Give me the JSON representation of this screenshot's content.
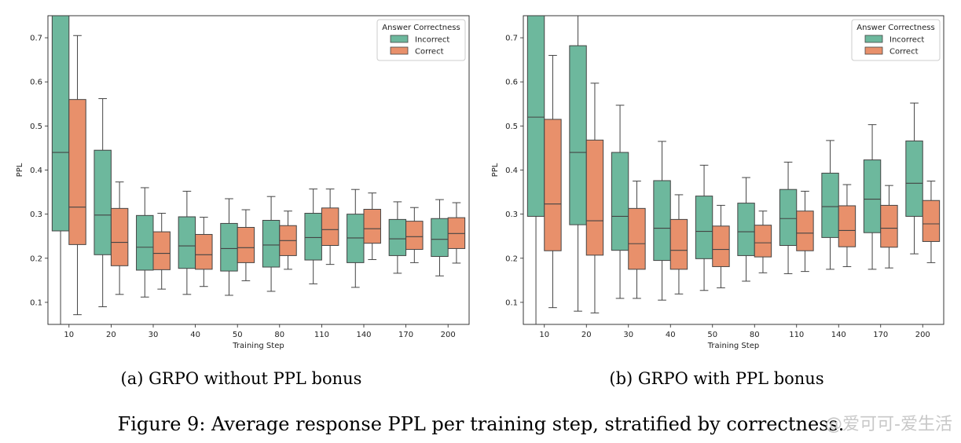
{
  "figure_caption": "Figure 9: Average response PPL per training step, stratified by correctness.",
  "watermark": "@爱可可-爱生活",
  "colors": {
    "incorrect": "#6db89d",
    "correct": "#e8906b",
    "line": "#444444"
  },
  "chart_data": [
    {
      "type": "box",
      "subcaption": "(a) GRPO without PPL bonus",
      "xlabel": "Training Step",
      "ylabel": "PPL",
      "ylim": [
        0.05,
        0.75
      ],
      "yticks": [
        "0.1",
        "0.2",
        "0.3",
        "0.4",
        "0.5",
        "0.6",
        "0.7"
      ],
      "categories": [
        "10",
        "20",
        "30",
        "40",
        "50",
        "80",
        "110",
        "140",
        "170",
        "200"
      ],
      "legend": {
        "title": "Answer Correctness",
        "position": "top-right"
      },
      "series": [
        {
          "name": "Incorrect",
          "boxes": [
            {
              "whislo": 0.05,
              "q1": 0.262,
              "med": 0.44,
              "q3": 0.75,
              "whishi": 0.75
            },
            {
              "whislo": 0.09,
              "q1": 0.208,
              "med": 0.298,
              "q3": 0.445,
              "whishi": 0.562
            },
            {
              "whislo": 0.112,
              "q1": 0.173,
              "med": 0.225,
              "q3": 0.297,
              "whishi": 0.36
            },
            {
              "whislo": 0.118,
              "q1": 0.177,
              "med": 0.228,
              "q3": 0.294,
              "whishi": 0.352
            },
            {
              "whislo": 0.116,
              "q1": 0.171,
              "med": 0.222,
              "q3": 0.279,
              "whishi": 0.335
            },
            {
              "whislo": 0.125,
              "q1": 0.18,
              "med": 0.23,
              "q3": 0.286,
              "whishi": 0.34
            },
            {
              "whislo": 0.142,
              "q1": 0.196,
              "med": 0.247,
              "q3": 0.302,
              "whishi": 0.357
            },
            {
              "whislo": 0.134,
              "q1": 0.19,
              "med": 0.246,
              "q3": 0.3,
              "whishi": 0.356
            },
            {
              "whislo": 0.166,
              "q1": 0.206,
              "med": 0.244,
              "q3": 0.288,
              "whishi": 0.328
            },
            {
              "whislo": 0.16,
              "q1": 0.204,
              "med": 0.243,
              "q3": 0.29,
              "whishi": 0.333
            }
          ]
        },
        {
          "name": "Correct",
          "boxes": [
            {
              "whislo": 0.072,
              "q1": 0.231,
              "med": 0.316,
              "q3": 0.56,
              "whishi": 0.705
            },
            {
              "whislo": 0.118,
              "q1": 0.183,
              "med": 0.236,
              "q3": 0.313,
              "whishi": 0.373
            },
            {
              "whislo": 0.13,
              "q1": 0.174,
              "med": 0.211,
              "q3": 0.26,
              "whishi": 0.302
            },
            {
              "whislo": 0.136,
              "q1": 0.175,
              "med": 0.208,
              "q3": 0.254,
              "whishi": 0.293
            },
            {
              "whislo": 0.149,
              "q1": 0.19,
              "med": 0.224,
              "q3": 0.27,
              "whishi": 0.31
            },
            {
              "whislo": 0.175,
              "q1": 0.206,
              "med": 0.24,
              "q3": 0.274,
              "whishi": 0.307
            },
            {
              "whislo": 0.186,
              "q1": 0.229,
              "med": 0.265,
              "q3": 0.314,
              "whishi": 0.357
            },
            {
              "whislo": 0.197,
              "q1": 0.234,
              "med": 0.267,
              "q3": 0.311,
              "whishi": 0.348
            },
            {
              "whislo": 0.19,
              "q1": 0.22,
              "med": 0.249,
              "q3": 0.284,
              "whishi": 0.315
            },
            {
              "whislo": 0.189,
              "q1": 0.222,
              "med": 0.256,
              "q3": 0.292,
              "whishi": 0.326
            }
          ]
        }
      ]
    },
    {
      "type": "box",
      "subcaption": "(b) GRPO with PPL bonus",
      "xlabel": "Training Step",
      "ylabel": "PPL",
      "ylim": [
        0.05,
        0.75
      ],
      "yticks": [
        "0.1",
        "0.2",
        "0.3",
        "0.4",
        "0.5",
        "0.6",
        "0.7"
      ],
      "categories": [
        "10",
        "20",
        "30",
        "40",
        "50",
        "80",
        "110",
        "140",
        "170",
        "200"
      ],
      "legend": {
        "title": "Answer Correctness",
        "position": "top-right"
      },
      "series": [
        {
          "name": "Incorrect",
          "boxes": [
            {
              "whislo": 0.05,
              "q1": 0.295,
              "med": 0.52,
              "q3": 0.75,
              "whishi": 0.75
            },
            {
              "whislo": 0.08,
              "q1": 0.276,
              "med": 0.44,
              "q3": 0.682,
              "whishi": 0.75
            },
            {
              "whislo": 0.109,
              "q1": 0.218,
              "med": 0.295,
              "q3": 0.44,
              "whishi": 0.547
            },
            {
              "whislo": 0.105,
              "q1": 0.195,
              "med": 0.268,
              "q3": 0.376,
              "whishi": 0.465
            },
            {
              "whislo": 0.127,
              "q1": 0.199,
              "med": 0.261,
              "q3": 0.341,
              "whishi": 0.411
            },
            {
              "whislo": 0.148,
              "q1": 0.206,
              "med": 0.26,
              "q3": 0.325,
              "whishi": 0.383
            },
            {
              "whislo": 0.165,
              "q1": 0.229,
              "med": 0.29,
              "q3": 0.356,
              "whishi": 0.418
            },
            {
              "whislo": 0.175,
              "q1": 0.247,
              "med": 0.317,
              "q3": 0.393,
              "whishi": 0.467
            },
            {
              "whislo": 0.175,
              "q1": 0.258,
              "med": 0.334,
              "q3": 0.423,
              "whishi": 0.503
            },
            {
              "whislo": 0.21,
              "q1": 0.295,
              "med": 0.37,
              "q3": 0.466,
              "whishi": 0.552
            }
          ]
        },
        {
          "name": "Correct",
          "boxes": [
            {
              "whislo": 0.088,
              "q1": 0.217,
              "med": 0.323,
              "q3": 0.515,
              "whishi": 0.66
            },
            {
              "whislo": 0.076,
              "q1": 0.207,
              "med": 0.285,
              "q3": 0.468,
              "whishi": 0.597
            },
            {
              "whislo": 0.109,
              "q1": 0.175,
              "med": 0.233,
              "q3": 0.313,
              "whishi": 0.375
            },
            {
              "whislo": 0.119,
              "q1": 0.175,
              "med": 0.218,
              "q3": 0.288,
              "whishi": 0.344
            },
            {
              "whislo": 0.133,
              "q1": 0.181,
              "med": 0.22,
              "q3": 0.273,
              "whishi": 0.32
            },
            {
              "whislo": 0.167,
              "q1": 0.203,
              "med": 0.235,
              "q3": 0.275,
              "whishi": 0.307
            },
            {
              "whislo": 0.17,
              "q1": 0.217,
              "med": 0.257,
              "q3": 0.307,
              "whishi": 0.352
            },
            {
              "whislo": 0.181,
              "q1": 0.226,
              "med": 0.263,
              "q3": 0.319,
              "whishi": 0.367
            },
            {
              "whislo": 0.178,
              "q1": 0.225,
              "med": 0.268,
              "q3": 0.32,
              "whishi": 0.365
            },
            {
              "whislo": 0.19,
              "q1": 0.238,
              "med": 0.278,
              "q3": 0.331,
              "whishi": 0.375
            }
          ]
        }
      ]
    }
  ]
}
